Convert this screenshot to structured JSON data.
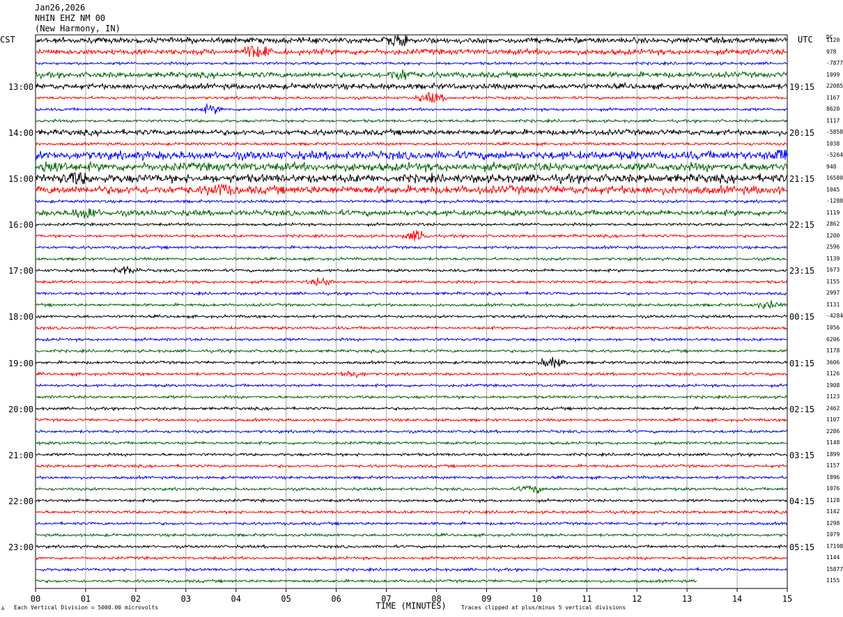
{
  "header": {
    "date": "Jan26,2026",
    "station": "NHIN EHZ NM 00",
    "location": "(New Harmony, IN)"
  },
  "timezone_left": "CST",
  "timezone_right": "UTC",
  "dc_header": "DC",
  "footer": {
    "left": "Each Vertical Division = 5000.00 microvolts",
    "right": "Traces clipped at plus/minus 5 vertical divisions",
    "mark": "A"
  },
  "colors": {
    "black": "#000000",
    "red": "#ff0000",
    "blue": "#0000ff",
    "green": "#006400",
    "grid": "#808080"
  },
  "chart_data": {
    "type": "line",
    "title": "NHIN EHZ NM 00",
    "xlabel": "TIME (MINUTES)",
    "xlim": [
      0,
      15
    ],
    "x_ticks": [
      "00",
      "01",
      "02",
      "03",
      "04",
      "05",
      "06",
      "07",
      "08",
      "09",
      "10",
      "11",
      "12",
      "13",
      "14",
      "15"
    ],
    "rows_per_hour": 4,
    "row_minutes": 15,
    "trace_colors": [
      "black",
      "red",
      "blue",
      "green"
    ],
    "left_labels": [
      {
        "row": 4,
        "text": "13:00"
      },
      {
        "row": 8,
        "text": "14:00"
      },
      {
        "row": 12,
        "text": "15:00"
      },
      {
        "row": 16,
        "text": "16:00"
      },
      {
        "row": 20,
        "text": "17:00"
      },
      {
        "row": 24,
        "text": "18:00"
      },
      {
        "row": 28,
        "text": "19:00"
      },
      {
        "row": 32,
        "text": "20:00"
      },
      {
        "row": 36,
        "text": "21:00"
      },
      {
        "row": 40,
        "text": "22:00"
      },
      {
        "row": 44,
        "text": "23:00"
      }
    ],
    "right_labels": [
      {
        "row": 4,
        "text": "19:15"
      },
      {
        "row": 8,
        "text": "20:15"
      },
      {
        "row": 12,
        "text": "21:15"
      },
      {
        "row": 16,
        "text": "22:15"
      },
      {
        "row": 20,
        "text": "23:15"
      },
      {
        "row": 24,
        "text": "00:15"
      },
      {
        "row": 28,
        "text": "01:15"
      },
      {
        "row": 32,
        "text": "02:15"
      },
      {
        "row": 36,
        "text": "03:15"
      },
      {
        "row": 40,
        "text": "04:15"
      },
      {
        "row": 44,
        "text": "05:15"
      }
    ],
    "dc_offsets": [
      "1120",
      "978",
      "-7877",
      "1099",
      "22085",
      "1167",
      "8620",
      "1117",
      "-5858",
      "1038",
      "-5264",
      "948",
      "16580",
      "1045",
      "-1288",
      "1119",
      "2862",
      "1200",
      "2596",
      "1139",
      "1673",
      "1155",
      "2997",
      "1131",
      "-4284",
      "1056",
      "6206",
      "1178",
      "3606",
      "1126",
      "1908",
      "1123",
      "2462",
      "1107",
      "2286",
      "1148",
      "1899",
      "1157",
      "1896",
      "1076",
      "1128",
      "1142",
      "1298",
      "1079",
      "17198",
      "1144",
      "15877",
      "1155"
    ],
    "row_amplitude": [
      2,
      2,
      1,
      2,
      2,
      1,
      1,
      1,
      2,
      1,
      3,
      3,
      3,
      3,
      1,
      2,
      1,
      1,
      1,
      1,
      1,
      1,
      1,
      1,
      1,
      1,
      1,
      1,
      1,
      1,
      1,
      1,
      1,
      1,
      1,
      1,
      1,
      1,
      1,
      1,
      1,
      1,
      1,
      1,
      1,
      1,
      1,
      1
    ],
    "events": [
      {
        "row": 0,
        "minute": 7.2,
        "amplitude": 3
      },
      {
        "row": 1,
        "minute": 4.4,
        "amplitude": 4
      },
      {
        "row": 3,
        "minute": 7.3,
        "amplitude": 3
      },
      {
        "row": 5,
        "minute": 7.9,
        "amplitude": 3
      },
      {
        "row": 6,
        "minute": 3.5,
        "amplitude": 2
      },
      {
        "row": 10,
        "minute": 14.9,
        "amplitude": 4
      },
      {
        "row": 11,
        "minute": 0.3,
        "amplitude": 3
      },
      {
        "row": 12,
        "minute": 0.8,
        "amplitude": 3
      },
      {
        "row": 13,
        "minute": 3.7,
        "amplitude": 3
      },
      {
        "row": 15,
        "minute": 1.0,
        "amplitude": 3
      },
      {
        "row": 17,
        "minute": 7.6,
        "amplitude": 3
      },
      {
        "row": 20,
        "minute": 1.8,
        "amplitude": 2
      },
      {
        "row": 21,
        "minute": 5.7,
        "amplitude": 2
      },
      {
        "row": 23,
        "minute": 14.6,
        "amplitude": 2
      },
      {
        "row": 28,
        "minute": 10.3,
        "amplitude": 3
      },
      {
        "row": 29,
        "minute": 6.3,
        "amplitude": 2
      },
      {
        "row": 39,
        "minute": 9.9,
        "amplitude": 2
      }
    ],
    "last_row_end_minute": 13.2
  }
}
